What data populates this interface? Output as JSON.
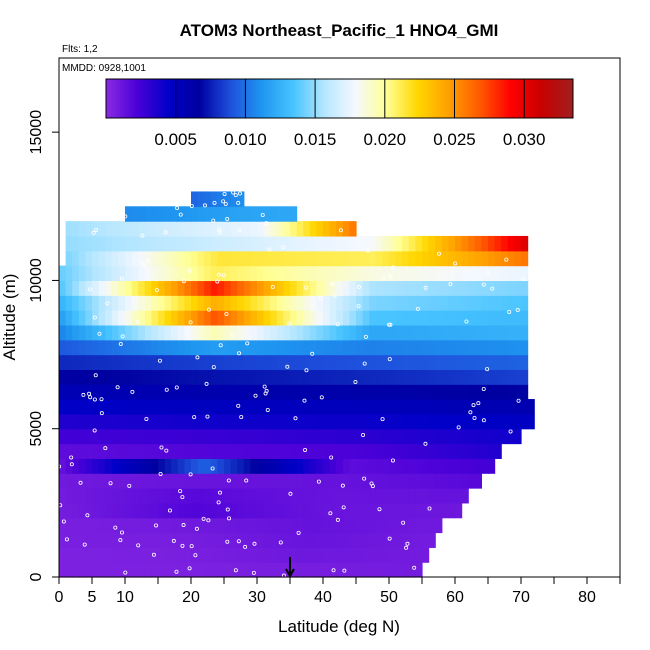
{
  "chart_data": {
    "type": "heatmap",
    "title": "ATOM3 Northeast_Pacific_1 HNO4_GMI",
    "annotations": {
      "flights": "Flts: 1,2",
      "dates": "MMDD: 0928,1001"
    },
    "xlabel": "Latitude (deg N)",
    "ylabel": "Altitude (m)",
    "xlim": [
      0,
      85
    ],
    "ylim": [
      0,
      17500
    ],
    "x_ticks_major": [
      0,
      5,
      10,
      20,
      30,
      40,
      50,
      60,
      70,
      80
    ],
    "x_ticks_minor": [
      15,
      25,
      35,
      45,
      55,
      65,
      75,
      85
    ],
    "y_ticks": [
      0,
      5000,
      10000,
      15000
    ],
    "colorbar": {
      "min": 0.0,
      "max": 0.0335,
      "ticks": [
        0.005,
        0.01,
        0.015,
        0.02,
        0.025,
        0.03
      ],
      "tick_labels": [
        "0.005",
        "0.010",
        "0.015",
        "0.020",
        "0.025",
        "0.030"
      ],
      "colors": [
        "#8a2be2",
        "#4b00d8",
        "#0000c8",
        "#0000a0",
        "#1e50dc",
        "#1e96f0",
        "#46c3ff",
        "#b4e6ff",
        "#f5f8ff",
        "#ffff96",
        "#ffd700",
        "#ffa000",
        "#ff5a00",
        "#ff0000",
        "#c80000",
        "#a02020"
      ]
    },
    "layers": [
      {
        "y0": 0,
        "y1": 500,
        "x0": 0,
        "x1": 55,
        "values": [
          0.0005,
          0.0005,
          0.0007,
          0.0008
        ]
      },
      {
        "y0": 500,
        "y1": 1000,
        "x0": 0,
        "x1": 56,
        "values": [
          0.0005,
          0.0006,
          0.001,
          0.0008
        ]
      },
      {
        "y0": 1000,
        "y1": 1500,
        "x0": 0,
        "x1": 57,
        "values": [
          0.0006,
          0.0007,
          0.0012,
          0.0008
        ]
      },
      {
        "y0": 1500,
        "y1": 2000,
        "x0": 0,
        "x1": 58,
        "values": [
          0.0006,
          0.0009,
          0.0013,
          0.0009
        ]
      },
      {
        "y0": 2000,
        "y1": 2500,
        "x0": 0,
        "x1": 61,
        "values": [
          0.0007,
          0.002,
          0.0012,
          0.001
        ]
      },
      {
        "y0": 2500,
        "y1": 3000,
        "x0": 0,
        "x1": 62,
        "values": [
          0.0008,
          0.0018,
          0.0012,
          0.0013
        ]
      },
      {
        "y0": 3000,
        "y1": 3500,
        "x0": 0,
        "x1": 64,
        "values": [
          0.0009,
          0.0012,
          0.0013,
          0.0018
        ]
      },
      {
        "y0": 3500,
        "y1": 4000,
        "x0": 0,
        "x1": 66,
        "values": [
          0.0012,
          0.0095,
          0.0016,
          0.0025
        ]
      },
      {
        "y0": 4000,
        "y1": 4500,
        "x0": 0,
        "x1": 67,
        "values": [
          0.0016,
          0.002,
          0.0022,
          0.0035
        ]
      },
      {
        "y0": 4500,
        "y1": 5000,
        "x0": 0,
        "x1": 70,
        "values": [
          0.0025,
          0.0028,
          0.0032,
          0.004
        ]
      },
      {
        "y0": 5000,
        "y1": 5500,
        "x0": 0,
        "x1": 72,
        "values": [
          0.0035,
          0.004,
          0.0042,
          0.0048
        ]
      },
      {
        "y0": 5500,
        "y1": 6000,
        "x0": 0,
        "x1": 72,
        "values": [
          0.0045,
          0.005,
          0.0052,
          0.0058
        ]
      },
      {
        "y0": 6000,
        "y1": 6500,
        "x0": 0,
        "x1": 71,
        "values": [
          0.0055,
          0.006,
          0.0062,
          0.0068
        ]
      },
      {
        "y0": 6500,
        "y1": 7000,
        "x0": 0,
        "x1": 71,
        "values": [
          0.0065,
          0.0072,
          0.0078,
          0.0085
        ]
      },
      {
        "y0": 7000,
        "y1": 7500,
        "x0": 0,
        "x1": 71,
        "values": [
          0.0078,
          0.0085,
          0.009,
          0.0095
        ]
      },
      {
        "y0": 7500,
        "y1": 8000,
        "x0": 0,
        "x1": 71,
        "values": [
          0.0092,
          0.0115,
          0.0105,
          0.011
        ]
      },
      {
        "y0": 8000,
        "y1": 8500,
        "x0": 0,
        "x1": 71,
        "values": [
          0.0105,
          0.0195,
          0.012,
          0.0125
        ]
      },
      {
        "y0": 8500,
        "y1": 9000,
        "x0": 0,
        "x1": 71,
        "values": [
          0.0115,
          0.027,
          0.0135,
          0.013
        ]
      },
      {
        "y0": 9000,
        "y1": 9500,
        "x0": 0,
        "x1": 71,
        "values": [
          0.0125,
          0.024,
          0.0145,
          0.0135
        ]
      },
      {
        "y0": 9500,
        "y1": 10000,
        "x0": 0,
        "x1": 71,
        "values": [
          0.0135,
          0.0285,
          0.0155,
          0.0145
        ]
      },
      {
        "y0": 10000,
        "y1": 10500,
        "x0": 0,
        "x1": 71,
        "values": [
          0.014,
          0.021,
          0.0185,
          0.0175
        ]
      },
      {
        "y0": 10500,
        "y1": 11000,
        "x0": 1,
        "x1": 71,
        "values": [
          0.0145,
          0.0215,
          0.021,
          0.026
        ]
      },
      {
        "y0": 11000,
        "y1": 11500,
        "x0": 1,
        "x1": 71,
        "values": [
          0.015,
          0.0165,
          0.018,
          0.0305
        ]
      },
      {
        "y0": 11500,
        "y1": 12000,
        "x0": 1,
        "x1": 45,
        "values": [
          0.0152,
          0.0165,
          0.0175,
          0.026
        ]
      },
      {
        "y0": 12000,
        "y1": 12500,
        "x0": 10,
        "x1": 36,
        "values": [
          0.0108,
          0.0112,
          0.0118,
          0.012
        ]
      },
      {
        "y0": 12500,
        "y1": 13000,
        "x0": 20,
        "x1": 28,
        "values": [
          0.0095,
          0.01,
          0.0105,
          0.011
        ]
      }
    ],
    "hotspot_latitude": 35
  }
}
